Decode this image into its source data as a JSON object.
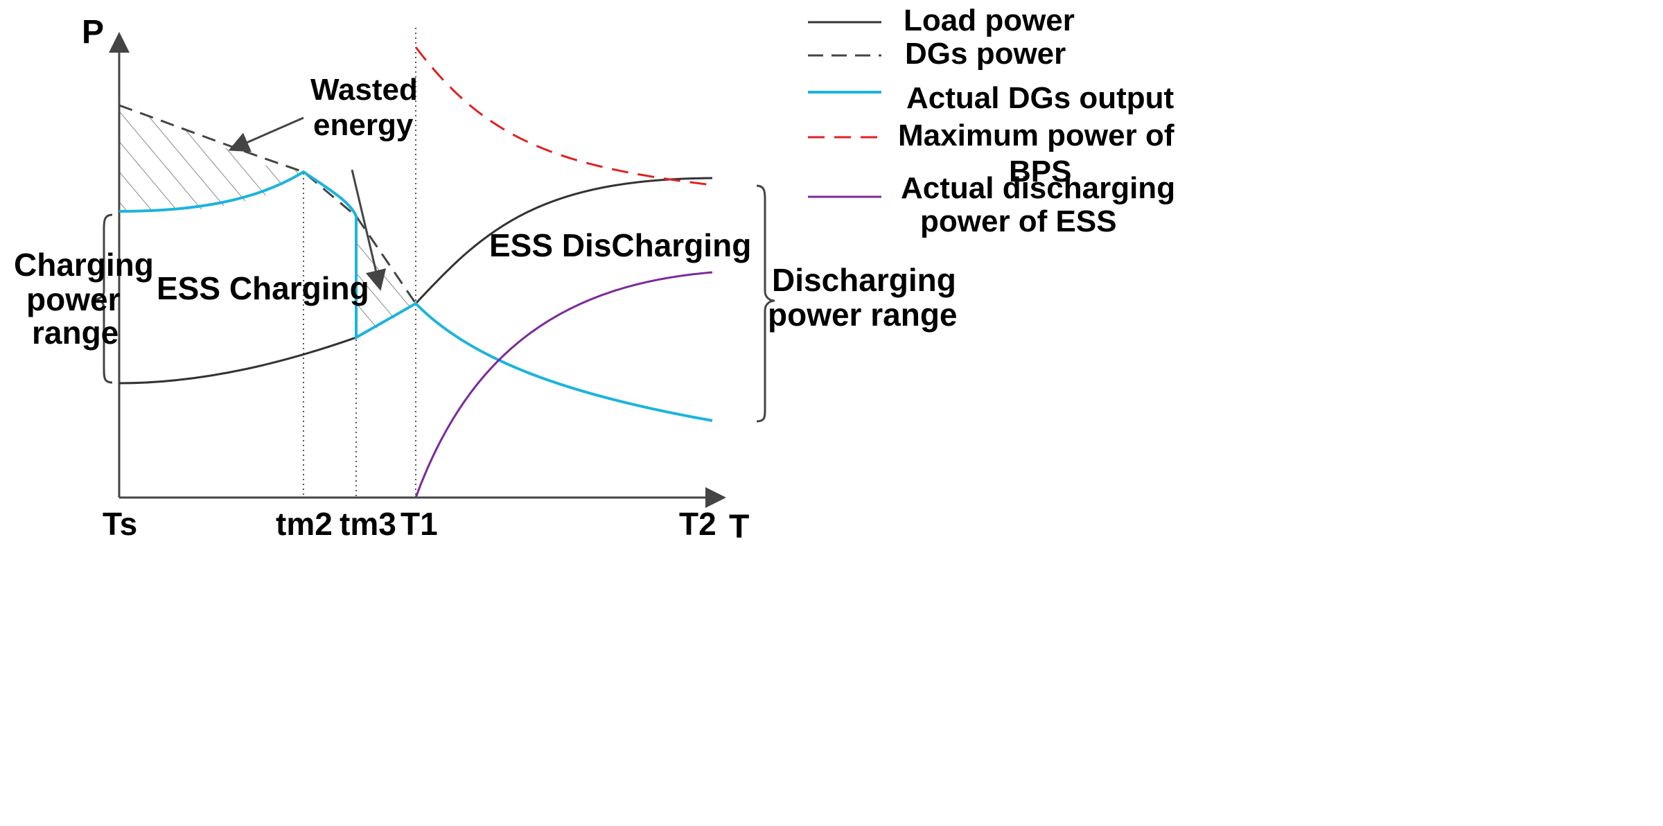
{
  "axes": {
    "y_label": "P",
    "x_label": "T"
  },
  "x_ticks": [
    "Ts",
    "tm2",
    "tm3",
    "T1",
    "T2"
  ],
  "region_labels": {
    "charging": "ESS Charging",
    "discharging": "ESS DisCharging",
    "wasted": [
      "Wasted",
      "energy"
    ]
  },
  "brace_labels": {
    "charging_range": [
      "Charging",
      "power",
      "range"
    ],
    "discharging_range": [
      "Discharging",
      "power range"
    ]
  },
  "legend": {
    "load_power": "Load power",
    "dgs_power": "DGs power",
    "actual_dgs": "Actual DGs output",
    "max_bps": [
      "Maximum power of",
      "BPS"
    ],
    "actual_discharge": [
      "Actual  discharging",
      "power of ESS"
    ]
  },
  "colors": {
    "load": "#333333",
    "dgs": "#444444",
    "actual_dgs": "#1cb4dc",
    "max_bps": "#e02020",
    "discharge": "#7a2a9a",
    "hatch": "#888888"
  }
}
